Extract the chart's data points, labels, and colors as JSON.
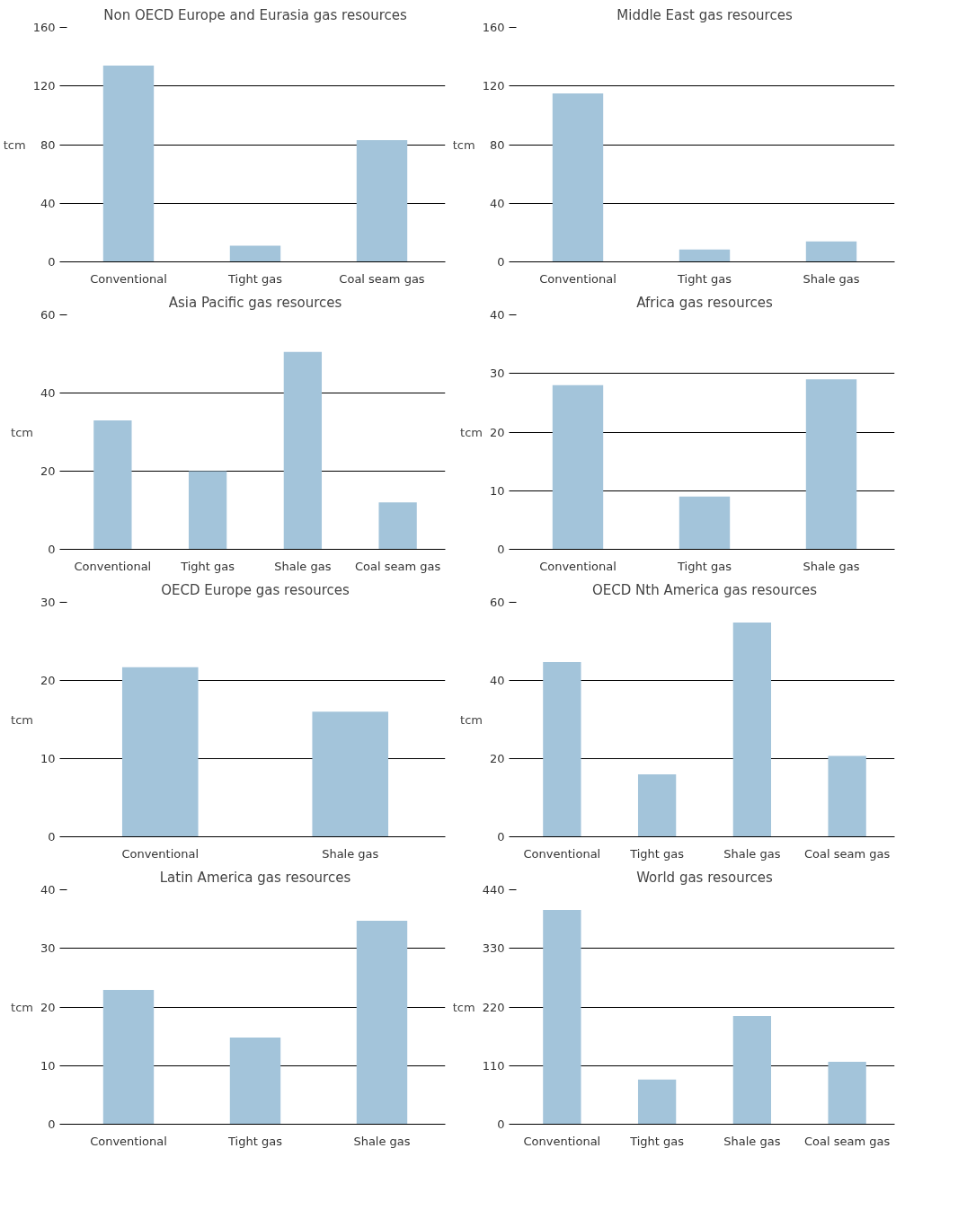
{
  "chart_data": [
    {
      "type": "bar",
      "title": "Non OECD Europe and Eurasia gas resources",
      "ylabel": "tcm",
      "categories": [
        "Conventional",
        "Tight gas",
        "Coal seam gas"
      ],
      "values": [
        134,
        11,
        83
      ],
      "color": "#a3c4da",
      "ylim": [
        0,
        160
      ],
      "yticks": [
        0,
        40,
        80,
        120,
        160
      ],
      "grid": "y"
    },
    {
      "type": "bar",
      "title": "Middle East gas resources",
      "ylabel": "tcm",
      "categories": [
        "Conventional",
        "Tight gas",
        "Shale gas"
      ],
      "values": [
        115,
        8.5,
        14
      ],
      "color": "#a3c4da",
      "ylim": [
        0,
        160
      ],
      "yticks": [
        0,
        40,
        80,
        120,
        160
      ],
      "grid": "y"
    },
    {
      "type": "bar",
      "title": "Asia Pacific gas resources",
      "ylabel": "tcm",
      "categories": [
        "Conventional",
        "Tight gas",
        "Shale gas",
        "Coal seam gas"
      ],
      "values": [
        33,
        20,
        50.5,
        12
      ],
      "color": "#a3c4da",
      "ylim": [
        0,
        60
      ],
      "yticks": [
        0,
        20,
        40,
        60
      ],
      "grid": "y"
    },
    {
      "type": "bar",
      "title": "Africa gas resources",
      "ylabel": "tcm",
      "categories": [
        "Conventional",
        "Tight gas",
        "Shale gas"
      ],
      "values": [
        28,
        9,
        29
      ],
      "color": "#a3c4da",
      "ylim": [
        0,
        40
      ],
      "yticks": [
        0,
        10,
        20,
        30,
        40
      ],
      "grid": "y"
    },
    {
      "type": "bar",
      "title": "OECD Europe gas resources",
      "ylabel": "tcm",
      "categories": [
        "Conventional",
        "Shale gas"
      ],
      "values": [
        21.7,
        16
      ],
      "color": "#a3c4da",
      "ylim": [
        0,
        30
      ],
      "yticks": [
        0,
        10,
        20,
        30
      ],
      "grid": "y"
    },
    {
      "type": "bar",
      "title": "OECD Nth America gas resources",
      "ylabel": "tcm",
      "categories": [
        "Conventional",
        "Tight gas",
        "Shale gas",
        "Coal seam gas"
      ],
      "values": [
        44.7,
        16,
        54.8,
        20.7
      ],
      "color": "#a3c4da",
      "ylim": [
        0,
        60
      ],
      "yticks": [
        0,
        20,
        40,
        60
      ],
      "grid": "y"
    },
    {
      "type": "bar",
      "title": "Latin America gas resources",
      "ylabel": "tcm",
      "categories": [
        "Conventional",
        "Tight gas",
        "Shale gas"
      ],
      "values": [
        22.9,
        14.8,
        34.7
      ],
      "color": "#a3c4da",
      "ylim": [
        0,
        40
      ],
      "yticks": [
        0,
        10,
        20,
        30,
        40
      ],
      "grid": "y"
    },
    {
      "type": "bar",
      "title": "World gas resources",
      "ylabel": "tcm",
      "categories": [
        "Conventional",
        "Tight gas",
        "Shale gas",
        "Coal seam gas"
      ],
      "values": [
        402,
        84,
        203,
        117
      ],
      "color": "#a3c4da",
      "ylim": [
        0,
        440
      ],
      "yticks": [
        0,
        110,
        220,
        330,
        440
      ],
      "grid": "y"
    }
  ]
}
